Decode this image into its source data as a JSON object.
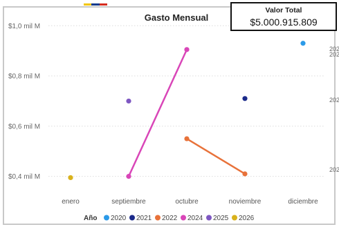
{
  "flag_colors": [
    "#f2c500",
    "#0a3a8c",
    "#d52b1e"
  ],
  "card": {
    "label": "Valor Total",
    "value": "$5.000.915.809"
  },
  "chart_data": {
    "type": "scatter",
    "title": "Gasto Mensual",
    "xlabel": "",
    "ylabel": "",
    "categories": [
      "enero",
      "septiembre",
      "octubre",
      "noviembre",
      "diciembre"
    ],
    "y_ticks": [
      {
        "value": 0.4,
        "label": "$0,4 mil M"
      },
      {
        "value": 0.6,
        "label": "$0,6 mil M"
      },
      {
        "value": 0.8,
        "label": "$0,8 mil M"
      },
      {
        "value": 1.0,
        "label": "$1,0 mil M"
      }
    ],
    "ylim": [
      0.355,
      1.02
    ],
    "grid": true,
    "legend_title": "Año",
    "legend_position": "bottom",
    "series": [
      {
        "name": "2020",
        "color": "#2b9ae8",
        "points": [
          {
            "x": "diciembre",
            "y": 0.93
          }
        ]
      },
      {
        "name": "2021",
        "color": "#1b2a8a",
        "points": [
          {
            "x": "noviembre",
            "y": 0.71
          }
        ]
      },
      {
        "name": "2022",
        "color": "#e8723a",
        "points": [
          {
            "x": "octubre",
            "y": 0.55
          },
          {
            "x": "noviembre",
            "y": 0.41
          }
        ]
      },
      {
        "name": "2024",
        "color": "#d946b8",
        "points": [
          {
            "x": "septiembre",
            "y": 0.4
          },
          {
            "x": "octubre",
            "y": 0.905
          }
        ]
      },
      {
        "name": "2025",
        "color": "#7e57c2",
        "points": [
          {
            "x": "septiembre",
            "y": 0.7
          }
        ]
      },
      {
        "name": "2026",
        "color": "#d9b21c",
        "points": [
          {
            "x": "enero",
            "y": 0.395
          }
        ]
      }
    ],
    "edge_labels": [
      "202",
      "202",
      "202",
      "202"
    ]
  }
}
